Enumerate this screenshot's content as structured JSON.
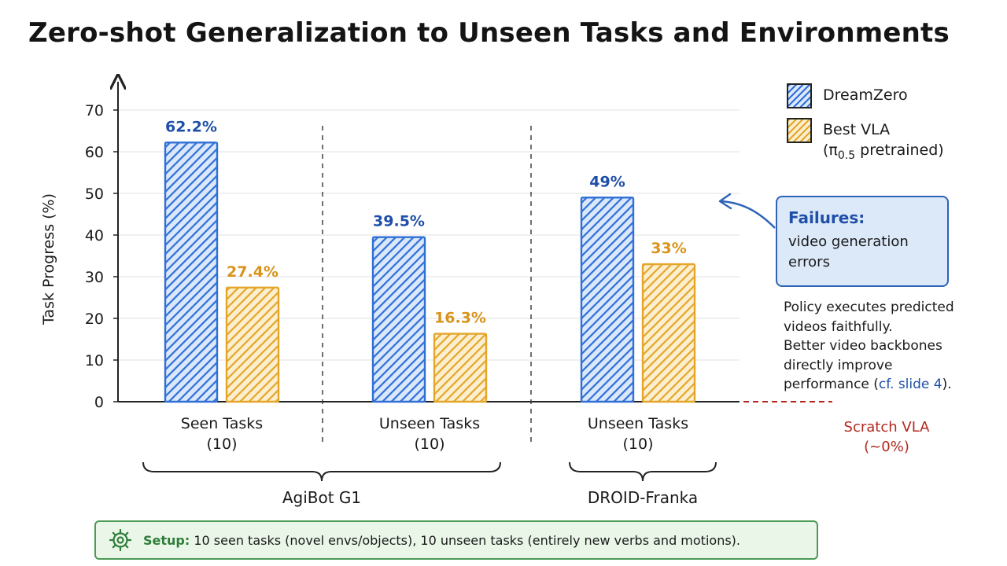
{
  "title": "Zero-shot Generalization to Unseen Tasks and Environments",
  "chart_data": {
    "type": "bar",
    "title": "Zero-shot Generalization to Unseen Tasks and Environments",
    "ylabel": "Task Progress (%)",
    "ylim": [
      0,
      70
    ],
    "yticks": [
      0,
      10,
      20,
      30,
      40,
      50,
      60,
      70
    ],
    "grid": true,
    "legend_position": "top-right",
    "categories": [
      "Seen Tasks (10)",
      "Unseen Tasks (10)",
      "Unseen Tasks (10)"
    ],
    "category_lines": [
      [
        "Seen Tasks",
        "(10)"
      ],
      [
        "Unseen Tasks",
        "(10)"
      ],
      [
        "Unseen Tasks",
        "(10)"
      ]
    ],
    "groups": [
      {
        "label": "AgiBot G1",
        "categories": [
          0,
          1
        ]
      },
      {
        "label": "DROID-Franka",
        "categories": [
          2
        ]
      }
    ],
    "series": [
      {
        "name": "DreamZero",
        "values": [
          62.2,
          39.5,
          49
        ],
        "labels": [
          "62.2%",
          "39.5%",
          "49%"
        ],
        "color": "#2f6fd6"
      },
      {
        "name": "Best VLA (π0.5 pretrained)",
        "values": [
          27.4,
          16.3,
          33
        ],
        "labels": [
          "27.4%",
          "16.3%",
          "33%"
        ],
        "color": "#e3a62a"
      }
    ],
    "baseline": {
      "line1": "Scratch VLA",
      "line2": "(~0%)",
      "value": 0,
      "color": "#b3261e"
    }
  },
  "legend": {
    "dreamzero": "DreamZero",
    "vla_line1": "Best VLA",
    "vla_open": "(π",
    "vla_sub": "0.5",
    "vla_close": " pretrained)"
  },
  "failures": {
    "title": "Failures:",
    "line1": "video generation",
    "line2": "errors",
    "color": "#2e63b7"
  },
  "note": {
    "line1": "Policy executes predicted",
    "line2": "videos faithfully.",
    "line3": "Better video backbones",
    "line4": "directly improve",
    "line5_pre": "performance (",
    "line5_ref": "cf. slide 4",
    "line5_post": ")."
  },
  "setup": {
    "icon": "gear-icon",
    "label": "Setup:",
    "text": " 10 seen tasks (novel envs/objects), 10 unseen tasks (entirely new verbs and motions)."
  }
}
